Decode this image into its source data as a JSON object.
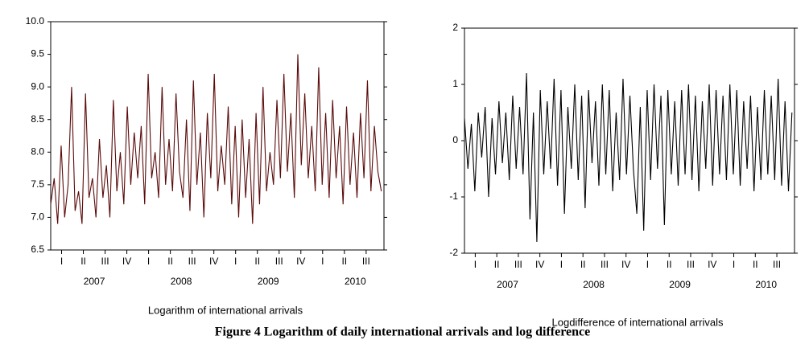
{
  "chart_data": [
    {
      "type": "line",
      "title": "Logarithm of international arrivals",
      "x": [
        2007,
        2007.04,
        2007.08,
        2007.12,
        2007.16,
        2007.2,
        2007.24,
        2007.28,
        2007.32,
        2007.36,
        2007.4,
        2007.44,
        2007.48,
        2007.52,
        2007.56,
        2007.6,
        2007.64,
        2007.68,
        2007.72,
        2007.76,
        2007.8,
        2007.84,
        2007.88,
        2007.92,
        2007.96,
        2008,
        2008.04,
        2008.08,
        2008.12,
        2008.16,
        2008.2,
        2008.24,
        2008.28,
        2008.32,
        2008.36,
        2008.4,
        2008.44,
        2008.48,
        2008.52,
        2008.56,
        2008.6,
        2008.64,
        2008.68,
        2008.72,
        2008.76,
        2008.8,
        2008.84,
        2008.88,
        2008.92,
        2008.96,
        2009,
        2009.04,
        2009.08,
        2009.12,
        2009.16,
        2009.2,
        2009.24,
        2009.28,
        2009.32,
        2009.36,
        2009.4,
        2009.44,
        2009.48,
        2009.52,
        2009.56,
        2009.6,
        2009.64,
        2009.68,
        2009.72,
        2009.76,
        2009.8,
        2009.84,
        2009.88,
        2009.92,
        2009.96,
        2010,
        2010.04,
        2010.08,
        2010.12,
        2010.16,
        2010.2,
        2010.24,
        2010.28,
        2010.32,
        2010.36,
        2010.4,
        2010.44,
        2010.48,
        2010.52,
        2010.56,
        2010.6,
        2010.64,
        2010.68,
        2010.72,
        2010.76,
        2010.8
      ],
      "series": [
        {
          "color": "#5a0a0a",
          "values": [
            7.2,
            7.6,
            6.9,
            8.1,
            7.0,
            7.5,
            9.0,
            7.1,
            7.4,
            6.9,
            8.9,
            7.3,
            7.6,
            7.0,
            8.2,
            7.3,
            7.8,
            7.0,
            8.8,
            7.4,
            8.0,
            7.2,
            8.7,
            7.5,
            8.3,
            7.6,
            8.4,
            7.2,
            9.2,
            7.6,
            8.0,
            7.3,
            9.0,
            7.5,
            8.2,
            7.4,
            8.9,
            7.7,
            7.3,
            8.5,
            7.1,
            9.1,
            7.5,
            8.3,
            7.0,
            8.6,
            7.6,
            9.2,
            7.4,
            8.1,
            7.5,
            8.7,
            7.2,
            8.4,
            7.0,
            8.5,
            7.3,
            8.2,
            6.9,
            8.6,
            7.2,
            9.0,
            7.4,
            8.0,
            7.5,
            8.8,
            7.6,
            9.2,
            7.7,
            8.6,
            7.3,
            9.5,
            7.8,
            8.9,
            7.6,
            8.4,
            7.4,
            9.3,
            7.5,
            8.6,
            7.3,
            8.8,
            7.6,
            8.4,
            7.2,
            8.7,
            7.5,
            8.3,
            7.3,
            8.6,
            7.6,
            9.1,
            7.4,
            8.4,
            7.7,
            7.4
          ]
        }
      ],
      "xlim": [
        2007,
        2010.83
      ],
      "xticks": [
        {
          "value": 2007.125,
          "label": "I"
        },
        {
          "value": 2007.375,
          "label": "II"
        },
        {
          "value": 2007.625,
          "label": "III"
        },
        {
          "value": 2007.875,
          "label": "IV"
        },
        {
          "value": 2008.125,
          "label": "I"
        },
        {
          "value": 2008.375,
          "label": "II"
        },
        {
          "value": 2008.625,
          "label": "III"
        },
        {
          "value": 2008.875,
          "label": "IV"
        },
        {
          "value": 2009.125,
          "label": "I"
        },
        {
          "value": 2009.375,
          "label": "II"
        },
        {
          "value": 2009.625,
          "label": "III"
        },
        {
          "value": 2009.875,
          "label": "IV"
        },
        {
          "value": 2010.125,
          "label": "I"
        },
        {
          "value": 2010.375,
          "label": "II"
        },
        {
          "value": 2010.625,
          "label": "III"
        }
      ],
      "xticks_year": [
        {
          "value": 2007.5,
          "label": "2007"
        },
        {
          "value": 2008.5,
          "label": "2008"
        },
        {
          "value": 2009.5,
          "label": "2009"
        },
        {
          "value": 2010.5,
          "label": "2010"
        }
      ],
      "ylim": [
        6.5,
        10.0
      ],
      "yticks": [
        6.5,
        {
          "value": 7,
          "label": "7.0"
        },
        7.5,
        {
          "value": 8,
          "label": "8.0"
        },
        8.5,
        {
          "value": 9,
          "label": "9.0"
        },
        9.5,
        {
          "value": 10,
          "label": "10.0"
        }
      ]
    },
    {
      "type": "line",
      "title": "Logdifference of international arrivals",
      "x": [
        2007,
        2007.04,
        2007.08,
        2007.12,
        2007.16,
        2007.2,
        2007.24,
        2007.28,
        2007.32,
        2007.36,
        2007.4,
        2007.44,
        2007.48,
        2007.52,
        2007.56,
        2007.6,
        2007.64,
        2007.68,
        2007.72,
        2007.76,
        2007.8,
        2007.84,
        2007.88,
        2007.92,
        2007.96,
        2008,
        2008.04,
        2008.08,
        2008.12,
        2008.16,
        2008.2,
        2008.24,
        2008.28,
        2008.32,
        2008.36,
        2008.4,
        2008.44,
        2008.48,
        2008.52,
        2008.56,
        2008.6,
        2008.64,
        2008.68,
        2008.72,
        2008.76,
        2008.8,
        2008.84,
        2008.88,
        2008.92,
        2008.96,
        2009,
        2009.04,
        2009.08,
        2009.12,
        2009.16,
        2009.2,
        2009.24,
        2009.28,
        2009.32,
        2009.36,
        2009.4,
        2009.44,
        2009.48,
        2009.52,
        2009.56,
        2009.6,
        2009.64,
        2009.68,
        2009.72,
        2009.76,
        2009.8,
        2009.84,
        2009.88,
        2009.92,
        2009.96,
        2010,
        2010.04,
        2010.08,
        2010.12,
        2010.16,
        2010.2,
        2010.24,
        2010.28,
        2010.32,
        2010.36,
        2010.4,
        2010.44,
        2010.48,
        2010.52,
        2010.56,
        2010.6,
        2010.64,
        2010.68,
        2010.72,
        2010.76,
        2010.8
      ],
      "series": [
        {
          "color": "#000000",
          "values": [
            0.4,
            -0.5,
            0.3,
            -0.9,
            0.5,
            -0.3,
            0.6,
            -1.0,
            0.4,
            -0.6,
            0.7,
            -0.4,
            0.5,
            -0.7,
            0.8,
            -0.5,
            0.6,
            -0.6,
            1.2,
            -1.4,
            0.5,
            -1.8,
            0.9,
            -0.6,
            0.7,
            -0.5,
            1.1,
            -0.8,
            0.9,
            -1.3,
            0.6,
            -0.5,
            1.0,
            -0.7,
            0.8,
            -1.2,
            0.9,
            -0.4,
            0.7,
            -0.8,
            1.0,
            -0.6,
            0.9,
            -0.9,
            0.5,
            -0.7,
            1.1,
            -0.6,
            0.8,
            -0.5,
            -1.3,
            0.6,
            -1.6,
            0.9,
            -0.7,
            1.0,
            -0.5,
            0.8,
            -1.5,
            0.9,
            -0.6,
            0.7,
            -0.8,
            0.9,
            -0.6,
            1.0,
            -0.7,
            0.8,
            -0.9,
            0.7,
            -0.5,
            1.0,
            -0.8,
            0.9,
            -0.6,
            0.8,
            -0.7,
            1.0,
            -0.6,
            0.9,
            -0.8,
            0.7,
            -0.5,
            0.8,
            -0.9,
            0.6,
            -0.7,
            0.9,
            -0.6,
            0.8,
            -0.7,
            1.1,
            -0.8,
            0.7,
            -0.9,
            0.5
          ]
        }
      ],
      "xlim": [
        2007,
        2010.83
      ],
      "xticks": [
        {
          "value": 2007.125,
          "label": "I"
        },
        {
          "value": 2007.375,
          "label": "II"
        },
        {
          "value": 2007.625,
          "label": "III"
        },
        {
          "value": 2007.875,
          "label": "IV"
        },
        {
          "value": 2008.125,
          "label": "I"
        },
        {
          "value": 2008.375,
          "label": "II"
        },
        {
          "value": 2008.625,
          "label": "III"
        },
        {
          "value": 2008.875,
          "label": "IV"
        },
        {
          "value": 2009.125,
          "label": "I"
        },
        {
          "value": 2009.375,
          "label": "II"
        },
        {
          "value": 2009.625,
          "label": "III"
        },
        {
          "value": 2009.875,
          "label": "IV"
        },
        {
          "value": 2010.125,
          "label": "I"
        },
        {
          "value": 2010.375,
          "label": "II"
        },
        {
          "value": 2010.625,
          "label": "III"
        }
      ],
      "xticks_year": [
        {
          "value": 2007.5,
          "label": "2007"
        },
        {
          "value": 2008.5,
          "label": "2008"
        },
        {
          "value": 2009.5,
          "label": "2009"
        },
        {
          "value": 2010.5,
          "label": "2010"
        }
      ],
      "ylim": [
        -2,
        2
      ],
      "yticks": [
        -2,
        -1,
        0,
        1,
        2
      ]
    }
  ],
  "figure_caption": "Figure 4 Logarithm of daily international arrivals and log difference"
}
